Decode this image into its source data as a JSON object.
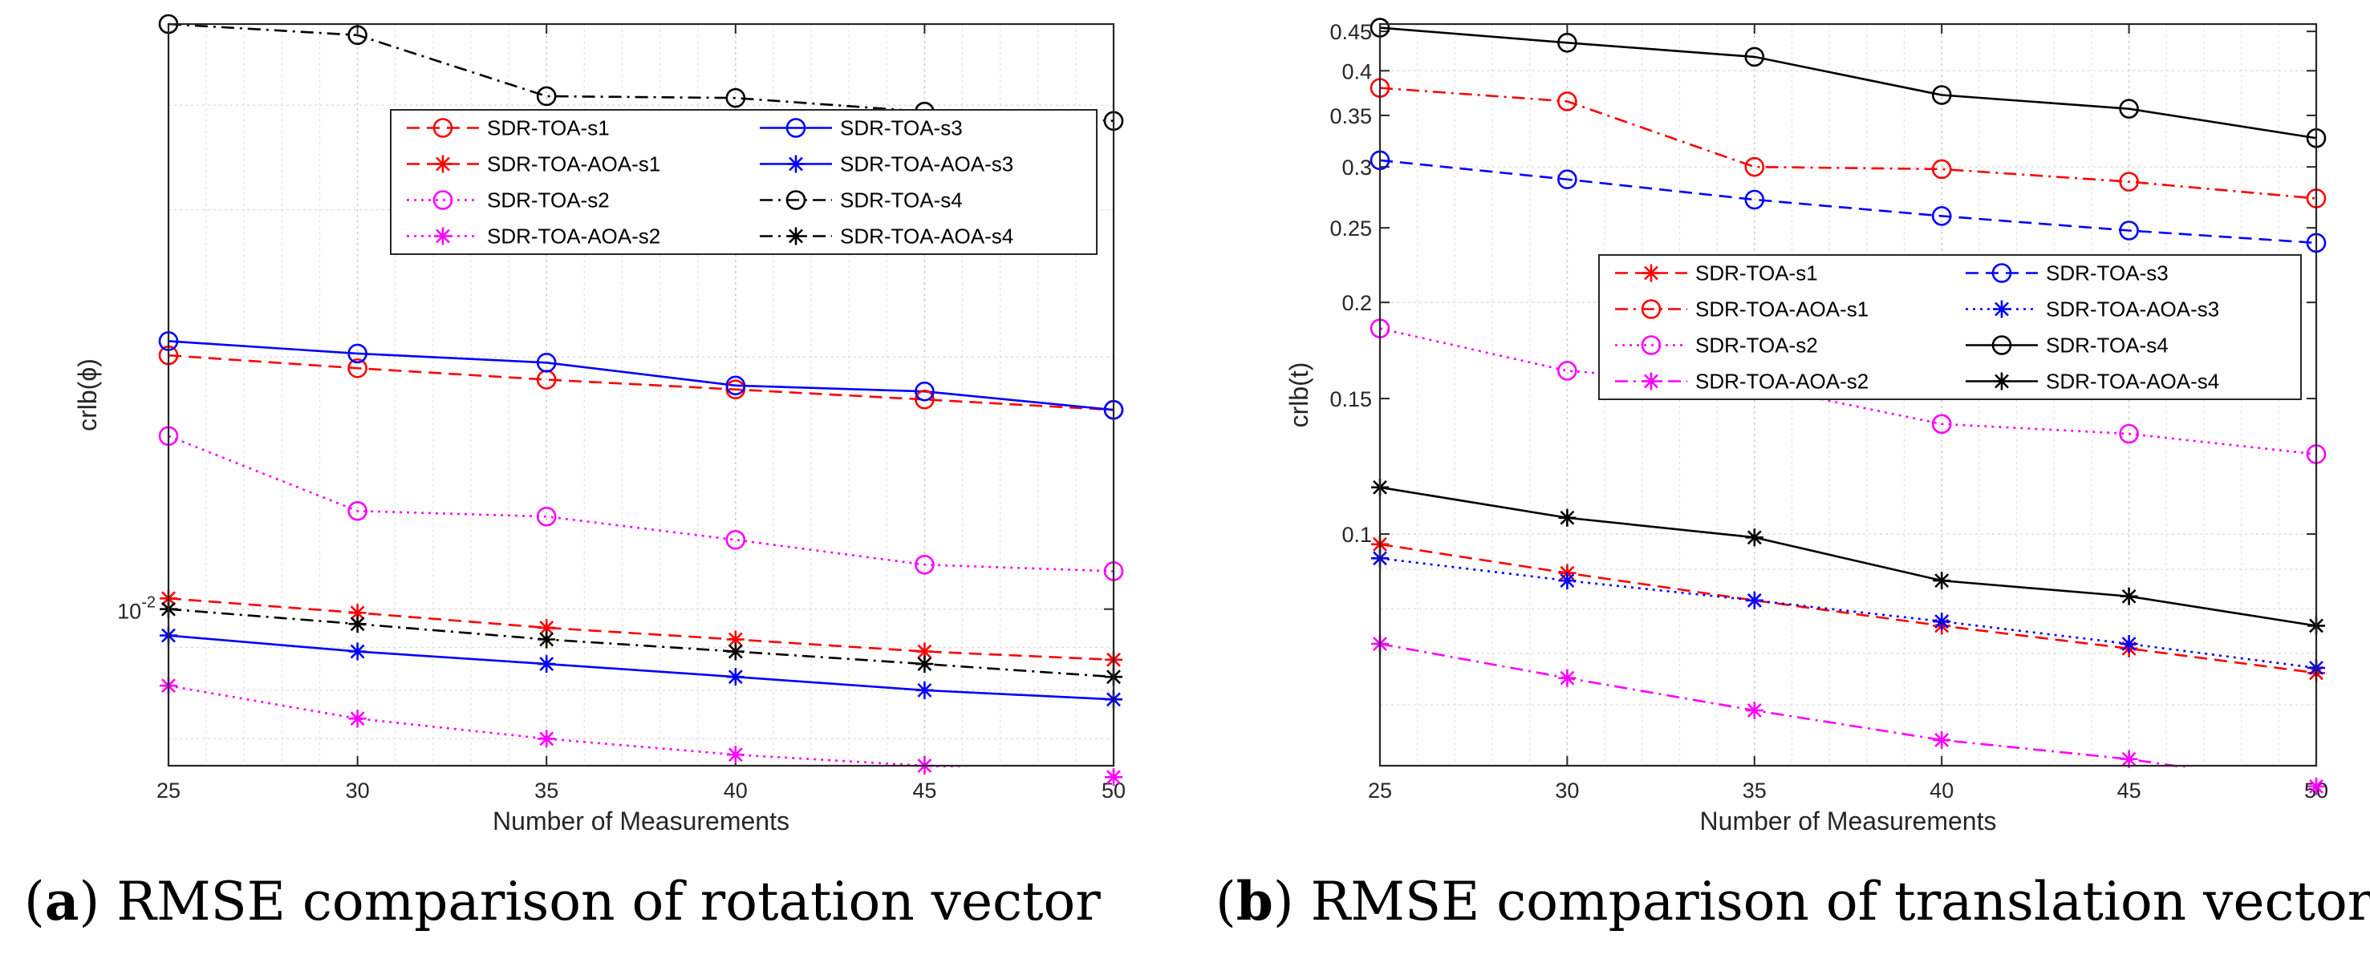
{
  "captions": {
    "a": {
      "letter": "a",
      "text": "RMSE comparison of rotation vector"
    },
    "b": {
      "letter": "b",
      "text": "RMSE comparison of translation vector"
    }
  },
  "chart_data": [
    {
      "id": "a",
      "type": "line",
      "xlabel": "Number of Measurements",
      "ylabel": "crlb(ϕ)",
      "yscale": "log",
      "x": [
        25,
        30,
        35,
        40,
        45,
        50
      ],
      "xlim": [
        25,
        50
      ],
      "ylim": [
        0.0065,
        0.05
      ],
      "x_ticks": [
        25,
        30,
        35,
        40,
        45,
        50
      ],
      "y_ticks": [
        {
          "value": 0.01,
          "base": "10",
          "exp": "-2"
        }
      ],
      "grid": true,
      "legend": {
        "position": "top-right",
        "columns": 2
      },
      "series": [
        {
          "name": "SDR-TOA-s1",
          "color": "#ff0000",
          "dash": "dashed",
          "marker": "circle",
          "values": [
            0.0201,
            0.0194,
            0.0188,
            0.0183,
            0.0178,
            0.0173
          ]
        },
        {
          "name": "SDR-TOA-AOA-s1",
          "color": "#ff0000",
          "dash": "dashed",
          "marker": "star",
          "values": [
            0.0103,
            0.0099,
            0.0095,
            0.0092,
            0.0089,
            0.0087
          ]
        },
        {
          "name": "SDR-TOA-s2",
          "color": "#ff00ff",
          "dash": "dotted",
          "marker": "circle",
          "values": [
            0.0161,
            0.0131,
            0.0129,
            0.0121,
            0.0113,
            0.0111
          ]
        },
        {
          "name": "SDR-TOA-AOA-s2",
          "color": "#ff00ff",
          "dash": "dotted",
          "marker": "star",
          "values": [
            0.0081,
            0.0074,
            0.007,
            0.0067,
            0.0065,
            0.0063
          ]
        },
        {
          "name": "SDR-TOA-s3",
          "color": "#0000ff",
          "dash": "solid",
          "marker": "circle",
          "values": [
            0.0209,
            0.0202,
            0.0197,
            0.0185,
            0.0182,
            0.0173
          ]
        },
        {
          "name": "SDR-TOA-AOA-s3",
          "color": "#0000ff",
          "dash": "solid",
          "marker": "star",
          "values": [
            0.0093,
            0.0089,
            0.0086,
            0.0083,
            0.008,
            0.0078
          ]
        },
        {
          "name": "SDR-TOA-s4",
          "color": "#000000",
          "dash": "dashdot",
          "marker": "circle",
          "values": [
            0.05,
            0.0485,
            0.041,
            0.0408,
            0.0393,
            0.0383
          ]
        },
        {
          "name": "SDR-TOA-AOA-s4",
          "color": "#000000",
          "dash": "dashdot",
          "marker": "star",
          "values": [
            0.01,
            0.0096,
            0.0092,
            0.0089,
            0.0086,
            0.0083
          ]
        }
      ]
    },
    {
      "id": "b",
      "type": "line",
      "xlabel": "Number of Measurements",
      "ylabel": "crlb(t)",
      "yscale": "log",
      "x": [
        25,
        30,
        35,
        40,
        45,
        50
      ],
      "xlim": [
        25,
        50
      ],
      "ylim": [
        0.05,
        0.46
      ],
      "x_ticks": [
        25,
        30,
        35,
        40,
        45,
        50
      ],
      "y_ticks": [
        {
          "value": 0.1,
          "label": "0.1"
        },
        {
          "value": 0.15,
          "label": "0.15"
        },
        {
          "value": 0.2,
          "label": "0.2"
        },
        {
          "value": 0.25,
          "label": "0.25"
        },
        {
          "value": 0.3,
          "label": "0.3"
        },
        {
          "value": 0.35,
          "label": "0.35"
        },
        {
          "value": 0.4,
          "label": "0.4"
        },
        {
          "value": 0.45,
          "label": "0.45"
        }
      ],
      "grid": true,
      "legend": {
        "position": "right",
        "columns": 2
      },
      "series": [
        {
          "name": "SDR-TOA-s1",
          "color": "#ff0000",
          "dash": "dashed",
          "marker": "star",
          "values": [
            0.097,
            0.089,
            0.082,
            0.076,
            0.071,
            0.066
          ]
        },
        {
          "name": "SDR-TOA-AOA-s1",
          "color": "#ff0000",
          "dash": "dashdot",
          "marker": "circle",
          "values": [
            0.38,
            0.365,
            0.3,
            0.298,
            0.287,
            0.273
          ]
        },
        {
          "name": "SDR-TOA-s2",
          "color": "#ff00ff",
          "dash": "dotted",
          "marker": "circle",
          "values": [
            0.185,
            0.163,
            0.156,
            0.139,
            0.135,
            0.127
          ]
        },
        {
          "name": "SDR-TOA-AOA-s2",
          "color": "#ff00ff",
          "dash": "dashdot",
          "marker": "star",
          "values": [
            0.072,
            0.065,
            0.059,
            0.054,
            0.051,
            0.047
          ]
        },
        {
          "name": "SDR-TOA-s3",
          "color": "#0000ff",
          "dash": "dashed",
          "marker": "circle",
          "values": [
            0.306,
            0.289,
            0.272,
            0.259,
            0.248,
            0.239
          ]
        },
        {
          "name": "SDR-TOA-AOA-s3",
          "color": "#0000ff",
          "dash": "dotted",
          "marker": "star",
          "values": [
            0.093,
            0.087,
            0.082,
            0.077,
            0.072,
            0.067
          ]
        },
        {
          "name": "SDR-TOA-s4",
          "color": "#000000",
          "dash": "solid",
          "marker": "circle",
          "values": [
            0.455,
            0.435,
            0.417,
            0.372,
            0.357,
            0.327
          ]
        },
        {
          "name": "SDR-TOA-AOA-s4",
          "color": "#000000",
          "dash": "solid",
          "marker": "star",
          "values": [
            0.115,
            0.105,
            0.099,
            0.087,
            0.083,
            0.076
          ]
        }
      ]
    }
  ]
}
